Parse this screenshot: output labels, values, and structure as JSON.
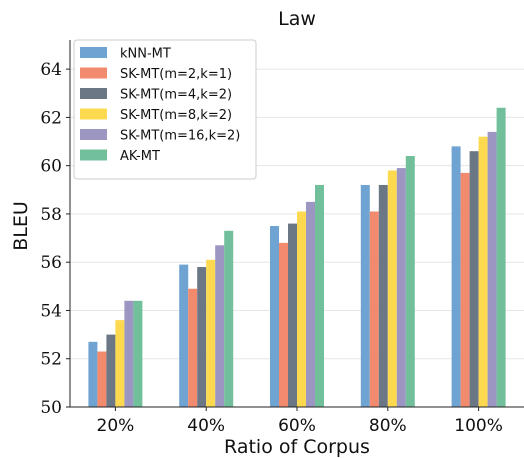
{
  "chart_data": {
    "type": "bar",
    "title": "Law",
    "xlabel": "Ratio of Corpus",
    "ylabel": "BLEU",
    "categories": [
      "20%",
      "40%",
      "60%",
      "80%",
      "100%"
    ],
    "ylim": [
      50,
      65
    ],
    "yticks": [
      50,
      52,
      54,
      56,
      58,
      60,
      62,
      64
    ],
    "grid": "horizontal",
    "legend_position": "top-left",
    "series": [
      {
        "name": "kNN-MT",
        "color": "#6fa3d2",
        "values": [
          52.7,
          55.9,
          57.5,
          59.2,
          60.8
        ]
      },
      {
        "name": "SK-MT(m=2,k=1)",
        "color": "#f28a6e",
        "values": [
          52.3,
          54.9,
          56.8,
          58.1,
          59.7
        ]
      },
      {
        "name": "SK-MT(m=4,k=2)",
        "color": "#6b7785",
        "values": [
          53.0,
          55.8,
          57.6,
          59.2,
          60.6
        ]
      },
      {
        "name": "SK-MT(m=8,k=2)",
        "color": "#fdd94f",
        "values": [
          53.6,
          56.1,
          58.1,
          59.8,
          61.2
        ]
      },
      {
        "name": "SK-MT(m=16,k=2)",
        "color": "#9b96c2",
        "values": [
          54.4,
          56.7,
          58.5,
          59.9,
          61.4
        ]
      },
      {
        "name": "AK-MT",
        "color": "#72c09b",
        "values": [
          54.4,
          57.3,
          59.2,
          60.4,
          62.4
        ]
      }
    ]
  }
}
